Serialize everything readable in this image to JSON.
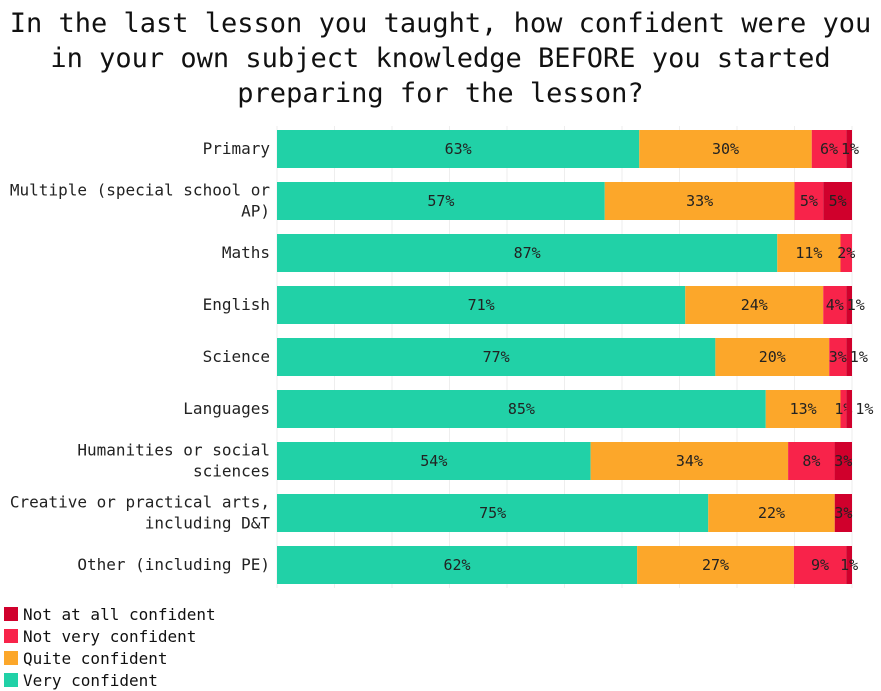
{
  "chart_data": {
    "type": "bar",
    "orientation": "horizontal",
    "stacked": true,
    "title_lines": [
      "In the last lesson you taught, how confident were you",
      "in your own subject knowledge BEFORE you started",
      "preparing for the lesson?"
    ],
    "categories": [
      [
        "Primary"
      ],
      [
        "Multiple (special school or",
        "AP)"
      ],
      [
        "Maths"
      ],
      [
        "English"
      ],
      [
        "Science"
      ],
      [
        "Languages"
      ],
      [
        "Humanities or social",
        "sciences"
      ],
      [
        "Creative or practical arts,",
        "including D&T"
      ],
      [
        "Other (including PE)"
      ]
    ],
    "series": [
      {
        "name": "Very confident",
        "color": "#21d1a7",
        "values": [
          63,
          57,
          87,
          71,
          77,
          85,
          54,
          75,
          62
        ]
      },
      {
        "name": "Quite confident",
        "color": "#fca72a",
        "values": [
          30,
          33,
          11,
          24,
          20,
          13,
          34,
          22,
          27
        ]
      },
      {
        "name": "Not very confident",
        "color": "#f8234a",
        "values": [
          6,
          5,
          2,
          4,
          3,
          1,
          8,
          0,
          9
        ]
      },
      {
        "name": "Not at all confident",
        "color": "#d0002c",
        "values": [
          1,
          5,
          0,
          1,
          1,
          1,
          3,
          3,
          1
        ]
      }
    ],
    "legend_order": [
      "Not at all confident",
      "Not very confident",
      "Quite confident",
      "Very confident"
    ],
    "value_suffix": "%",
    "xlim": [
      0,
      100
    ],
    "legend_position": "bottom-left",
    "grid": true
  }
}
